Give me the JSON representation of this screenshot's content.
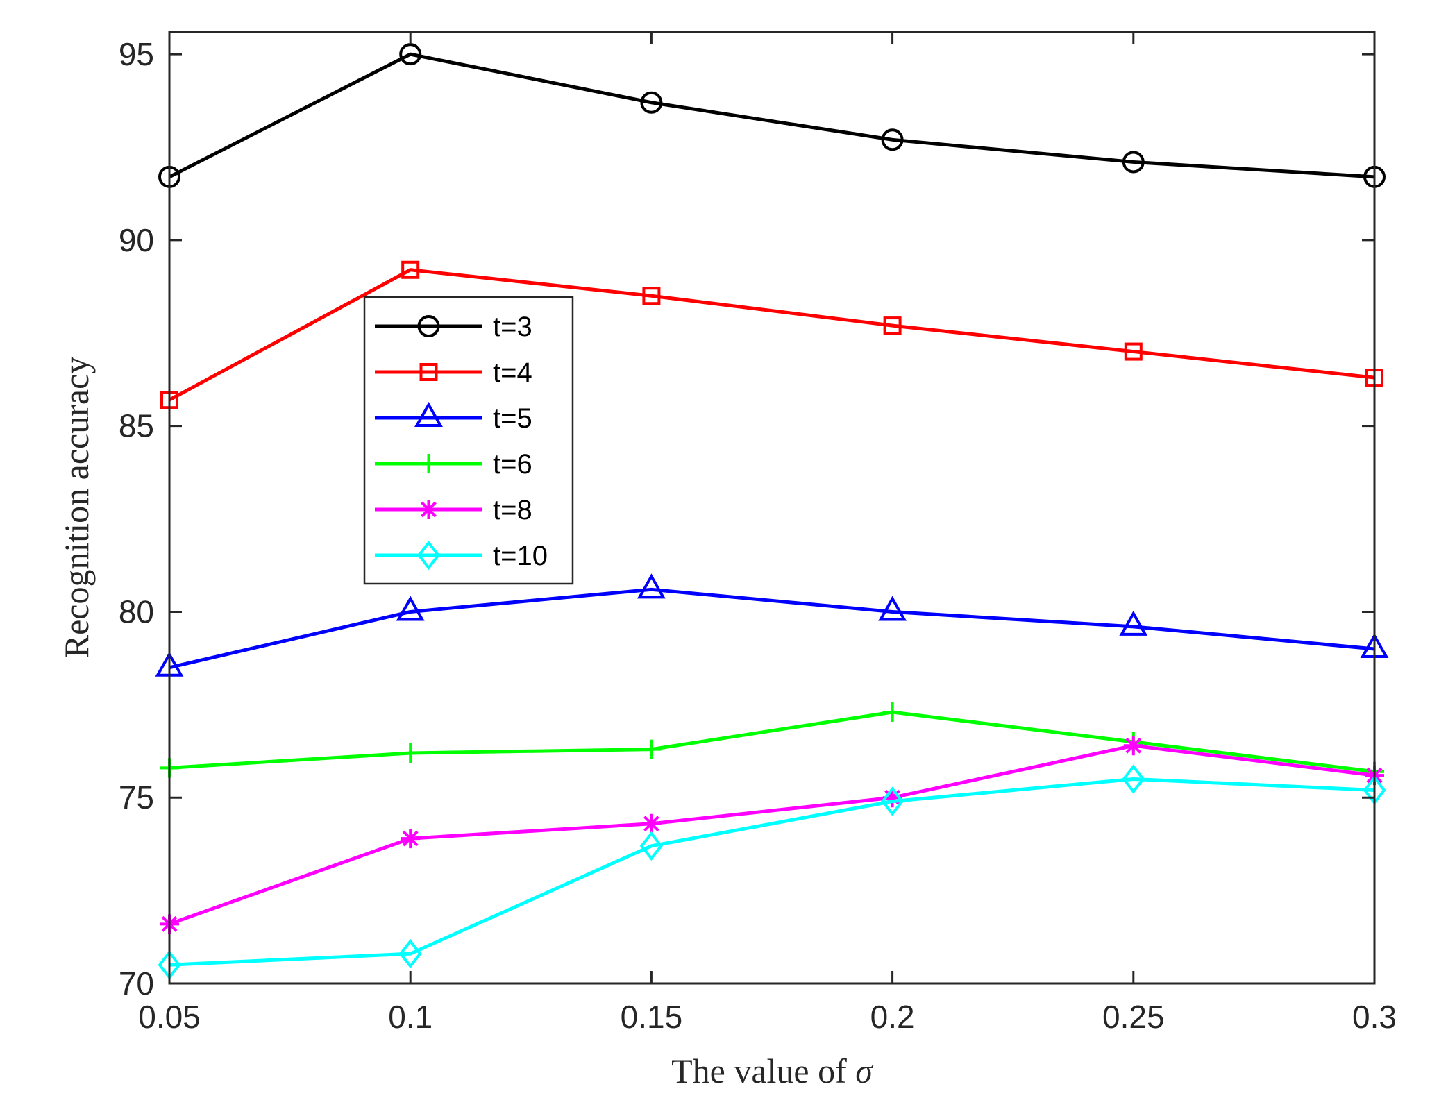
{
  "chart_data": {
    "type": "line",
    "title": "",
    "xlabel": "The value of",
    "xlabel_symbol": "σ",
    "ylabel": "Recognition accuracy",
    "x": [
      0.05,
      0.1,
      0.15,
      0.2,
      0.25,
      0.3
    ],
    "x_tick_labels": [
      "0.05",
      "0.1",
      "0.15",
      "0.2",
      "0.25",
      "0.3"
    ],
    "xlim": [
      0.05,
      0.3
    ],
    "ylim": [
      70,
      95.6
    ],
    "y_ticks": [
      70,
      75,
      80,
      85,
      90,
      95
    ],
    "y_tick_labels": [
      "70",
      "75",
      "80",
      "85",
      "90",
      "95"
    ],
    "grid": false,
    "legend_position": "upper-left-center",
    "series": [
      {
        "name": "t=3",
        "color": "#000000",
        "marker": "circle",
        "values": [
          91.7,
          95.0,
          93.7,
          92.7,
          92.1,
          91.7
        ]
      },
      {
        "name": "t=4",
        "color": "#ff0000",
        "marker": "square",
        "values": [
          85.7,
          89.2,
          88.5,
          87.7,
          87.0,
          86.3
        ]
      },
      {
        "name": "t=5",
        "color": "#0000ff",
        "marker": "triangle",
        "values": [
          78.5,
          80.0,
          80.6,
          80.0,
          79.6,
          79.0
        ]
      },
      {
        "name": "t=6",
        "color": "#00ff00",
        "marker": "plus",
        "values": [
          75.8,
          76.2,
          76.3,
          77.3,
          76.5,
          75.7
        ]
      },
      {
        "name": "t=8",
        "color": "#ff00ff",
        "marker": "star",
        "values": [
          71.6,
          73.9,
          74.3,
          75.0,
          76.4,
          75.6
        ]
      },
      {
        "name": "t=10",
        "color": "#00ffff",
        "marker": "diamond",
        "values": [
          70.5,
          70.8,
          73.7,
          74.9,
          75.5,
          75.2
        ]
      }
    ]
  }
}
